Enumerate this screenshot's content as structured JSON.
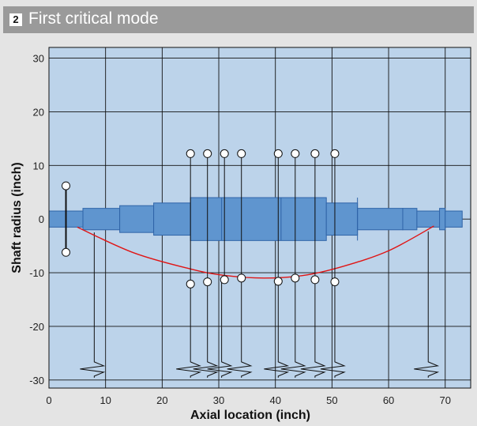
{
  "header": {
    "badge": "2",
    "title": "First critical mode"
  },
  "colors": {
    "plot_bg": "#bcd3ea",
    "grid": "#111111",
    "shaft": "#5f95cf",
    "shaft_edge": "#2f64a8",
    "mode": "#e01515",
    "support": "#111111"
  },
  "chart_data": {
    "type": "line",
    "title": "First critical mode",
    "xlabel": "Axial location (inch)",
    "ylabel": "Shaft radius (inch)",
    "xlim": [
      0,
      74.5
    ],
    "ylim": [
      -31.5,
      32
    ],
    "xticks": [
      0,
      10,
      20,
      30,
      40,
      50,
      60,
      70
    ],
    "yticks": [
      30,
      20,
      10,
      0,
      -10,
      -20,
      -30
    ],
    "grid": true,
    "shaft_segments": [
      {
        "x0": 0,
        "x1": 6,
        "r": 1.5
      },
      {
        "x0": 6,
        "x1": 12.5,
        "r": 2
      },
      {
        "x0": 12.5,
        "x1": 18.5,
        "r": 2.5
      },
      {
        "x0": 18.5,
        "x1": 25,
        "r": 3
      },
      {
        "x0": 25,
        "x1": 49,
        "r": 4
      },
      {
        "x0": 49,
        "x1": 54.5,
        "r": 3
      },
      {
        "x0": 54.5,
        "x1": 62.5,
        "r": 2
      },
      {
        "x0": 62.5,
        "x1": 65,
        "r": 2
      },
      {
        "x0": 65,
        "x1": 69,
        "r": 1.5
      },
      {
        "x0": 69,
        "x1": 70,
        "r": 2
      },
      {
        "x0": 70,
        "x1": 73,
        "r": 1.5
      }
    ],
    "inner_segment_bounds": [
      30.5,
      41,
      47,
      54.5
    ],
    "mode_shape": [
      {
        "x": 5,
        "y": -1.5
      },
      {
        "x": 15,
        "y": -6.3
      },
      {
        "x": 25,
        "y": -9.3
      },
      {
        "x": 31,
        "y": -10.5
      },
      {
        "x": 38,
        "y": -11.0
      },
      {
        "x": 45,
        "y": -10.5
      },
      {
        "x": 52,
        "y": -8.8
      },
      {
        "x": 60,
        "y": -5.9
      },
      {
        "x": 68,
        "y": -1.3
      }
    ],
    "disk_stations": [
      {
        "x": 25,
        "top": 12.2,
        "bottom": -12.1
      },
      {
        "x": 28,
        "top": 12.2,
        "bottom": -11.7
      },
      {
        "x": 31,
        "top": 12.2,
        "bottom": -11.3
      },
      {
        "x": 34,
        "top": 12.2,
        "bottom": -11.0
      },
      {
        "x": 40.5,
        "top": 12.2,
        "bottom": -11.6
      },
      {
        "x": 43.5,
        "top": 12.2,
        "bottom": -11.0
      },
      {
        "x": 47,
        "top": 12.2,
        "bottom": -11.3
      },
      {
        "x": 50.5,
        "top": 12.2,
        "bottom": -11.7
      }
    ],
    "end_station": {
      "x": 3,
      "top": 6.2,
      "bottom": -6.2
    },
    "supports": [
      {
        "x": 8,
        "y_start": -2.5
      },
      {
        "x": 25,
        "y_start": -12.1
      },
      {
        "x": 28,
        "y_start": -11.7
      },
      {
        "x": 30.5,
        "y_start": -11.3
      },
      {
        "x": 34,
        "y_start": -11.0
      },
      {
        "x": 40.5,
        "y_start": -11.6
      },
      {
        "x": 43.5,
        "y_start": -11.0
      },
      {
        "x": 47,
        "y_start": -11.3
      },
      {
        "x": 50.5,
        "y_start": -11.7
      },
      {
        "x": 67,
        "y_start": -2.3
      }
    ]
  }
}
